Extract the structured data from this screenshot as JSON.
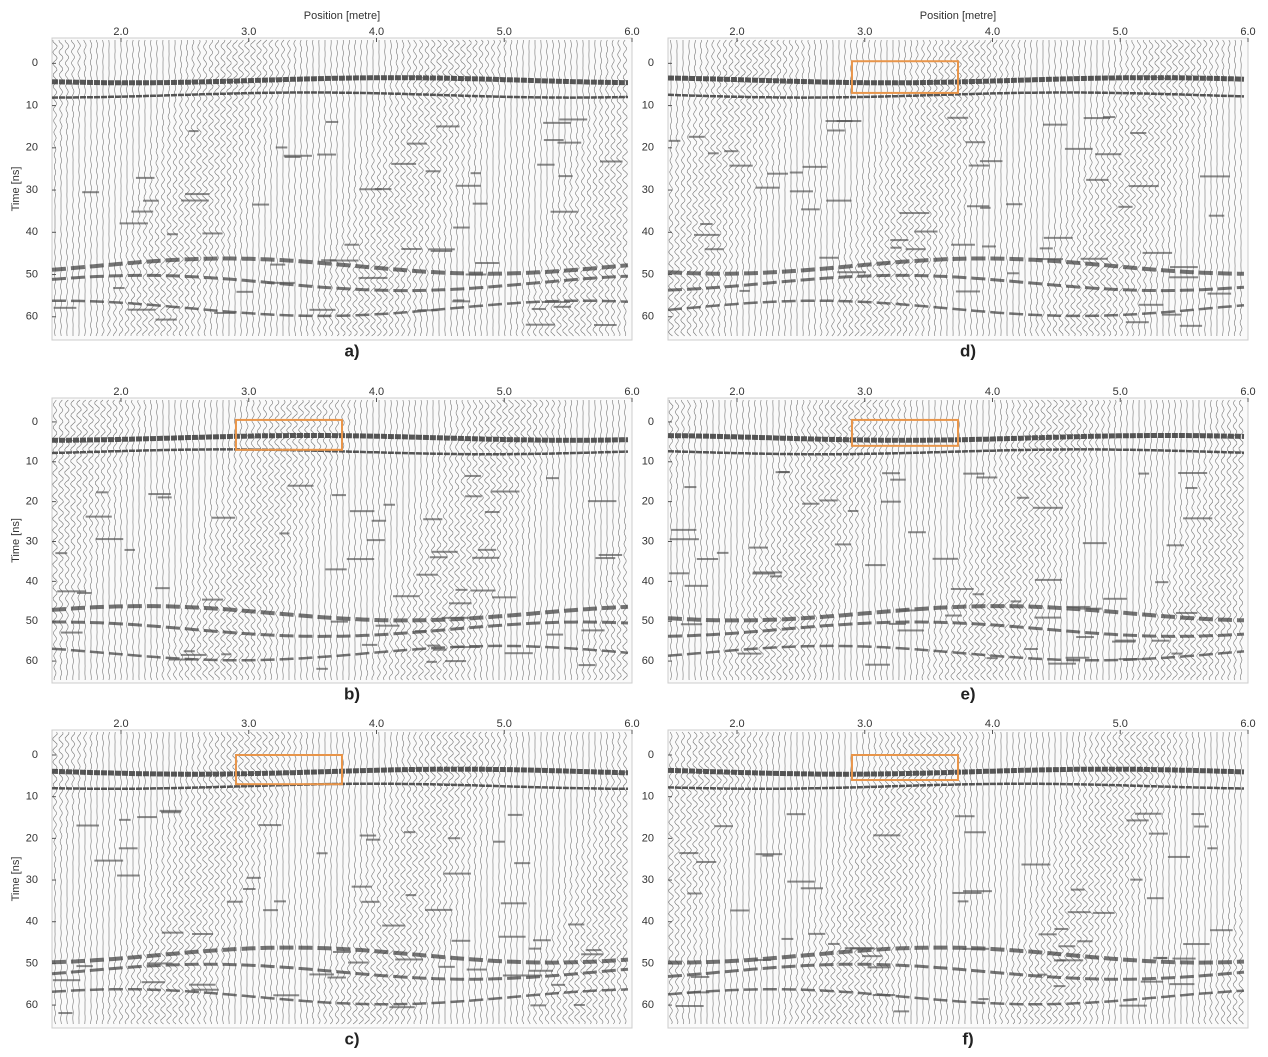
{
  "chart_data": [
    {
      "type": "wiggle",
      "panel_label": "a)",
      "xlabel": "Position [metre]",
      "ylabel": "Time [ns]",
      "xlim": [
        1.46,
        6.0
      ],
      "ylim": [
        -6,
        65.5
      ],
      "xticks": [
        {
          "value": 2,
          "label": "2.0"
        },
        {
          "value": 3,
          "label": "3.0"
        },
        {
          "value": 4,
          "label": "4.0"
        },
        {
          "value": 5,
          "label": "5.0"
        },
        {
          "value": 6,
          "label": "6.0"
        }
      ],
      "yticks": [
        0,
        10,
        20,
        30,
        40,
        50,
        60
      ]
    },
    {
      "type": "wiggle",
      "panel_label": "b)",
      "ylabel": "Time [ns]",
      "xlim": [
        1.46,
        6.0
      ],
      "ylim": [
        -6,
        65.5
      ],
      "xticks": [
        {
          "value": 2,
          "label": "2.0"
        },
        {
          "value": 3,
          "label": "3.0"
        },
        {
          "value": 4,
          "label": "4.0"
        },
        {
          "value": 5,
          "label": "5.0"
        },
        {
          "value": 6,
          "label": "6.0"
        }
      ],
      "yticks": [
        0,
        10,
        20,
        30,
        40,
        50,
        60
      ],
      "highlight": {
        "x": [
          2.9,
          3.73
        ],
        "y": [
          -0.5,
          7
        ],
        "color": "#e8954a"
      }
    },
    {
      "type": "wiggle",
      "panel_label": "c)",
      "ylabel": "Time [ns]",
      "xlim": [
        1.46,
        6.0
      ],
      "ylim": [
        -6,
        65.5
      ],
      "xticks": [
        {
          "value": 2,
          "label": "2.0"
        },
        {
          "value": 3,
          "label": "3.0"
        },
        {
          "value": 4,
          "label": "4.0"
        },
        {
          "value": 5,
          "label": "5.0"
        },
        {
          "value": 6,
          "label": "6.0"
        }
      ],
      "yticks": [
        0,
        10,
        20,
        30,
        40,
        50,
        60
      ],
      "highlight": {
        "x": [
          2.9,
          3.73
        ],
        "y": [
          0,
          7
        ],
        "color": "#e8954a"
      }
    },
    {
      "type": "wiggle",
      "panel_label": "d)",
      "xlabel": "Position [metre]",
      "xlim": [
        1.46,
        6.0
      ],
      "ylim": [
        -6,
        65.5
      ],
      "xticks": [
        {
          "value": 2,
          "label": "2.0"
        },
        {
          "value": 3,
          "label": "3.0"
        },
        {
          "value": 4,
          "label": "4.0"
        },
        {
          "value": 5,
          "label": "5.0"
        },
        {
          "value": 6,
          "label": "6.0"
        }
      ],
      "yticks": [
        0,
        10,
        20,
        30,
        40,
        50,
        60
      ],
      "highlight": {
        "x": [
          2.9,
          3.73
        ],
        "y": [
          -0.5,
          7
        ],
        "color": "#e8954a"
      }
    },
    {
      "type": "wiggle",
      "panel_label": "e)",
      "xlim": [
        1.46,
        6.0
      ],
      "ylim": [
        -6,
        65.5
      ],
      "xticks": [
        {
          "value": 2,
          "label": "2.0"
        },
        {
          "value": 3,
          "label": "3.0"
        },
        {
          "value": 4,
          "label": "4.0"
        },
        {
          "value": 5,
          "label": "5.0"
        },
        {
          "value": 6,
          "label": "6.0"
        }
      ],
      "yticks": [
        0,
        10,
        20,
        30,
        40,
        50,
        60
      ],
      "highlight": {
        "x": [
          2.9,
          3.73
        ],
        "y": [
          -0.5,
          6
        ],
        "color": "#e8954a"
      }
    },
    {
      "type": "wiggle",
      "panel_label": "f)",
      "xlim": [
        1.46,
        6.0
      ],
      "ylim": [
        -6,
        65.5
      ],
      "xticks": [
        {
          "value": 2,
          "label": "2.0"
        },
        {
          "value": 3,
          "label": "3.0"
        },
        {
          "value": 4,
          "label": "4.0"
        },
        {
          "value": 5,
          "label": "5.0"
        },
        {
          "value": 6,
          "label": "6.0"
        }
      ],
      "yticks": [
        0,
        10,
        20,
        30,
        40,
        50,
        60
      ],
      "highlight": {
        "x": [
          2.9,
          3.73
        ],
        "y": [
          0,
          6
        ],
        "color": "#e8954a"
      }
    }
  ]
}
